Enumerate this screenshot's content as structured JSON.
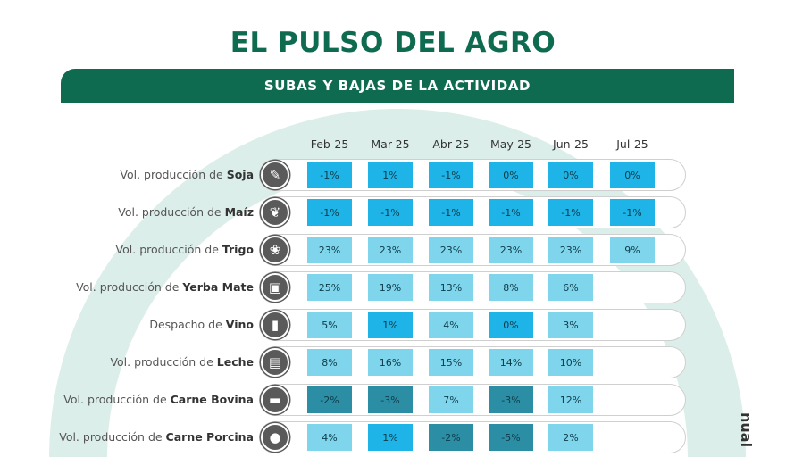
{
  "header": {
    "title": "EL PULSO DEL AGRO",
    "subtitle": "SUBAS Y BAJAS DE LA ACTIVIDAD"
  },
  "side_text": "nual",
  "colors": {
    "brand": "#0f6b50",
    "arc": "#dbeee9",
    "cell_low": "#1fb4e8",
    "cell_mid": "#7fd6ec",
    "cell_neg": "#2c8ea4"
  },
  "chart_data": {
    "type": "table",
    "columns": [
      "Feb-25",
      "Mar-25",
      "Abr-25",
      "May-25",
      "Jun-25",
      "Jul-25"
    ],
    "rows": [
      {
        "prefix": "Vol. producción de ",
        "name": "Soja",
        "icon": "soy-icon",
        "glyph": "✎",
        "values": [
          "-1%",
          "1%",
          "-1%",
          "0%",
          "0%",
          "0%"
        ]
      },
      {
        "prefix": "Vol. producción de ",
        "name": "Maíz",
        "icon": "corn-icon",
        "glyph": "❦",
        "values": [
          "-1%",
          "-1%",
          "-1%",
          "-1%",
          "-1%",
          "-1%"
        ]
      },
      {
        "prefix": "Vol. producción de ",
        "name": "Trigo",
        "icon": "wheat-icon",
        "glyph": "❀",
        "values": [
          "23%",
          "23%",
          "23%",
          "23%",
          "23%",
          "9%"
        ]
      },
      {
        "prefix": "Vol. producción de ",
        "name": "Yerba Mate",
        "icon": "yerba-mate-icon",
        "glyph": "▣",
        "values": [
          "25%",
          "19%",
          "13%",
          "8%",
          "6%",
          ""
        ]
      },
      {
        "prefix": "Despacho de ",
        "name": "Vino",
        "icon": "wine-bottle-icon",
        "glyph": "▮",
        "values": [
          "5%",
          "1%",
          "4%",
          "0%",
          "3%",
          ""
        ]
      },
      {
        "prefix": "Vol. producción de ",
        "name": "Leche",
        "icon": "milk-icon",
        "glyph": "▤",
        "values": [
          "8%",
          "16%",
          "15%",
          "14%",
          "10%",
          ""
        ]
      },
      {
        "prefix": "Vol. producción de ",
        "name": "Carne Bovina",
        "icon": "cow-icon",
        "glyph": "▬",
        "values": [
          "-2%",
          "-3%",
          "7%",
          "-3%",
          "12%",
          ""
        ]
      },
      {
        "prefix": "Vol. producción de ",
        "name": "Carne Porcina",
        "icon": "pig-icon",
        "glyph": "●",
        "values": [
          "4%",
          "1%",
          "-2%",
          "-5%",
          "2%",
          ""
        ]
      }
    ],
    "cell_colors": [
      [
        "#1fb4e8",
        "#1fb4e8",
        "#1fb4e8",
        "#1fb4e8",
        "#1fb4e8",
        "#1fb4e8"
      ],
      [
        "#1fb4e8",
        "#1fb4e8",
        "#1fb4e8",
        "#1fb4e8",
        "#1fb4e8",
        "#1fb4e8"
      ],
      [
        "#7fd6ec",
        "#7fd6ec",
        "#7fd6ec",
        "#7fd6ec",
        "#7fd6ec",
        "#7fd6ec"
      ],
      [
        "#7fd6ec",
        "#7fd6ec",
        "#7fd6ec",
        "#7fd6ec",
        "#7fd6ec",
        ""
      ],
      [
        "#7fd6ec",
        "#1fb4e8",
        "#7fd6ec",
        "#1fb4e8",
        "#7fd6ec",
        ""
      ],
      [
        "#7fd6ec",
        "#7fd6ec",
        "#7fd6ec",
        "#7fd6ec",
        "#7fd6ec",
        ""
      ],
      [
        "#2c8ea4",
        "#2c8ea4",
        "#7fd6ec",
        "#2c8ea4",
        "#7fd6ec",
        ""
      ],
      [
        "#7fd6ec",
        "#1fb4e8",
        "#2c8ea4",
        "#2c8ea4",
        "#7fd6ec",
        ""
      ]
    ]
  }
}
